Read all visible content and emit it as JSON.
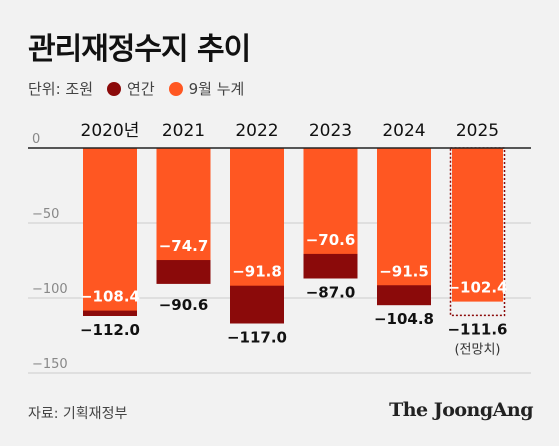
{
  "header": {
    "title": "관리재정수지 추이",
    "unit_label": "단위: 조원"
  },
  "legend": [
    {
      "name": "연간",
      "color": "#8b0a0a"
    },
    {
      "name": "9월 누계",
      "color": "#ff5722"
    }
  ],
  "footer": {
    "source": "자료: 기획재정부",
    "brand": "The JoongAng"
  },
  "chart_data": {
    "type": "bar",
    "title": "관리재정수지 추이",
    "xlabel": "",
    "ylabel": "",
    "categories": [
      "2020년",
      "2021",
      "2022",
      "2023",
      "2024",
      "2025"
    ],
    "series": [
      {
        "name": "연간",
        "color": "#8b0a0a",
        "values": [
          -112.0,
          -90.6,
          -117.0,
          -87.0,
          -104.8,
          -111.6
        ]
      },
      {
        "name": "9월 누계",
        "color": "#ff5722",
        "values": [
          -108.4,
          -74.7,
          -91.8,
          -70.6,
          -91.5,
          -102.4
        ]
      }
    ],
    "annual_labels": [
      "−112.0",
      "−90.6",
      "−117.0",
      "−87.0",
      "−104.8",
      "−111.6"
    ],
    "ytd_labels": [
      "−108.4",
      "−74.7",
      "−91.8",
      "−70.6",
      "−91.5",
      "−102.4"
    ],
    "forecast_note": "(전망치)",
    "forecast_index": 5,
    "yticks": [
      0,
      -50,
      -100,
      -150
    ],
    "ytick_labels": [
      "0",
      "−50",
      "−100",
      "−150"
    ],
    "ylim": [
      -150,
      0
    ],
    "grid": true,
    "legend_position": "top-left",
    "axis_color": "#222222",
    "grid_color": "#cccccc",
    "label_color_dark": "#111111",
    "label_color_light": "#ffffff"
  }
}
